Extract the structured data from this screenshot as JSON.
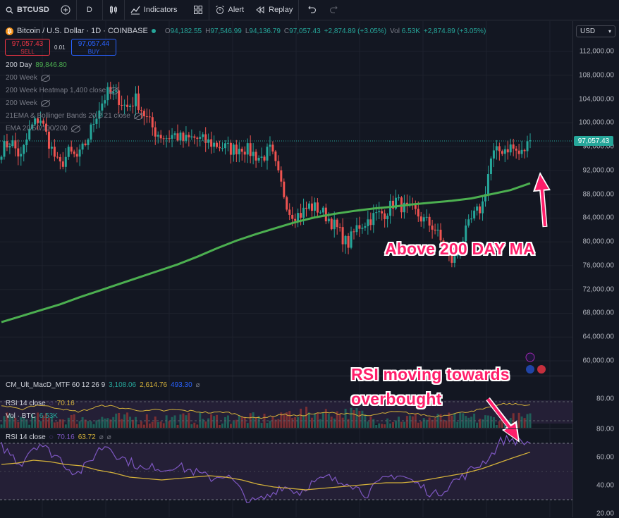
{
  "toolbar": {
    "symbol": "BTCUSD",
    "interval": "D",
    "indicators": "Indicators",
    "alert": "Alert",
    "replay": "Replay"
  },
  "header": {
    "title": "Bitcoin / U.S. Dollar · 1D · COINBASE",
    "ohlc": {
      "o_label": "O",
      "o": "94,182.55",
      "h_label": "H",
      "h": "97,546.99",
      "l_label": "L",
      "l": "94,136.79",
      "c_label": "C",
      "c": "97,057.43",
      "change": "+2,874.89 (+3.05%)",
      "vol_label": "Vol",
      "vol": "6.53K",
      "vol_change": "+2,874.89 (+3.05%)"
    },
    "sell_price": "97,057.43",
    "sell_label": "SELL",
    "spread": "0.01",
    "buy_price": "97,057.44",
    "buy_label": "BUY",
    "currency": "USD"
  },
  "indicators_legend": {
    "ma200_label": "200 Day",
    "ma200_value": "89,846.80",
    "ind2": "200 Week",
    "ind3": "200 Week Heatmap 1,400 close",
    "ind4": "200 Week",
    "ind5": "21EMA & Bollinger Bands 20 2 21 close",
    "ind6": "EMA 20/50/100/200"
  },
  "pane2": {
    "macd_label": "CM_Ult_MacD_MTF 60 12 26 9",
    "macd_v1": "3,108.06",
    "macd_v2": "2,614.76",
    "macd_v3": "493.30",
    "rsi_label": "RSI 14 close",
    "rsi_value": "70.16",
    "vol_label": "Vol · BTC",
    "vol_value": "6.53K"
  },
  "pane3": {
    "rsi_label": "RSI 14 close",
    "rsi_value": "70.16",
    "rsi_ma_value": "63.72"
  },
  "annotations": {
    "ma_note": "Above 200 DAY MA",
    "rsi_note_line1": "RSI moving towards",
    "rsi_note_line2": "overbought"
  },
  "colors": {
    "up": "#26a69a",
    "down": "#ef5350",
    "ma200": "#4caf50",
    "rsi": "#7e57c2",
    "rsi_ma": "#d4b13a",
    "annotation": "#ff1e6a"
  },
  "chart_data": [
    {
      "type": "candlestick",
      "title": "Bitcoin / U.S. Dollar · 1D · COINBASE",
      "ylim": [
        56500,
        114000
      ],
      "y_ticks": [
        "112,000.00",
        "108,000.00",
        "104,000.00",
        "100,000.00",
        "96,000.00",
        "92,000.00",
        "88,000.00",
        "84,000.00",
        "80,000.00",
        "76,000.00",
        "72,000.00",
        "68,000.00",
        "64,000.00",
        "60,000.00"
      ],
      "last_price": "97,057.43",
      "close_anchors": [
        95500,
        97000,
        94000,
        99000,
        101000,
        96500,
        92500,
        95000,
        94000,
        97500,
        102000,
        105000,
        104500,
        102500,
        104000,
        101000,
        98500,
        97500,
        98000,
        97000,
        97500,
        97000,
        96500,
        96000,
        95500,
        96000,
        95000,
        94000,
        95500,
        90000,
        85000,
        84500,
        86000,
        85500,
        84000,
        82000,
        79500,
        82500,
        83500,
        84500,
        85000,
        87000,
        85500,
        85000,
        83500,
        82500,
        79000,
        76500,
        80500,
        84000,
        86000,
        94500,
        95500,
        96000,
        94500,
        97057
      ],
      "ma200": [
        66500,
        67500,
        68500,
        69500,
        70700,
        71800,
        72900,
        74000,
        75100,
        76200,
        77500,
        78900,
        80200,
        81300,
        82300,
        83300,
        84100,
        84700,
        85200,
        85600,
        85900,
        86300,
        86600,
        86900,
        87300,
        88000,
        88700,
        89846
      ],
      "ma200_label": "200 Day"
    },
    {
      "type": "line",
      "title": "RSI 14 close",
      "ylim": [
        20,
        80
      ],
      "y_ticks": [
        "80.00",
        "60.00",
        "40.00",
        "20.00"
      ],
      "rsi": [
        68,
        62,
        55,
        66,
        70,
        64,
        60,
        52,
        49,
        55,
        65,
        69,
        62,
        58,
        55,
        50,
        54,
        51,
        55,
        52,
        50,
        47,
        45,
        48,
        44,
        35,
        28,
        30,
        33,
        40,
        38,
        35,
        41,
        43,
        46,
        42,
        44,
        38,
        34,
        40,
        45,
        48,
        46,
        42,
        38,
        33,
        37,
        43,
        46,
        52,
        56,
        62,
        72,
        73,
        71,
        70.16
      ],
      "rsi_ma": [
        55,
        56,
        58,
        57,
        55,
        54,
        51,
        49,
        46,
        45,
        44,
        45,
        46,
        47,
        46,
        44,
        41,
        39,
        38,
        37,
        38,
        39,
        40,
        41,
        42,
        42,
        43,
        45,
        47,
        49,
        52,
        56,
        60,
        63.72
      ]
    }
  ]
}
